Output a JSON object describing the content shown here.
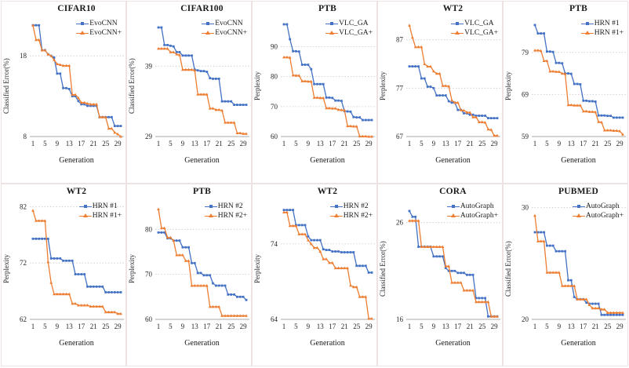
{
  "colors": {
    "series1": "#4472C4",
    "series2": "#ED7D31",
    "grid": "#c9c9c9",
    "axis": "#a8a8a8"
  },
  "xlabel": "Generation",
  "x_ticks": [
    1,
    5,
    9,
    13,
    17,
    21,
    25,
    29
  ],
  "n_generations": 30,
  "chart_data": [
    {
      "type": "line",
      "title": "CIFAR10",
      "ylabel": "Classified Error(%)",
      "y_ticks": [
        8,
        18
      ],
      "ylim": [
        8,
        22.4
      ],
      "grid": "dashed",
      "legend_position": "top-right",
      "series": [
        {
          "name": "EvoCNN",
          "marker": "square",
          "values": [
            21.8,
            21.8,
            21.8,
            18.7,
            18.7,
            18.2,
            18.0,
            17.8,
            15.8,
            15.8,
            14.0,
            14.0,
            13.9,
            13.0,
            13.0,
            12.4,
            12.0,
            12.0,
            11.8,
            11.8,
            11.8,
            11.8,
            10.4,
            10.4,
            10.4,
            10.4,
            10.4,
            9.3,
            9.3,
            9.3
          ]
        },
        {
          "name": "EvoCNN+",
          "marker": "triangle",
          "values": [
            21.8,
            20.0,
            20.0,
            18.7,
            18.7,
            18.2,
            18.0,
            17.5,
            17.0,
            16.9,
            16.8,
            16.8,
            16.8,
            13.2,
            13.2,
            12.8,
            12.2,
            12.2,
            12.1,
            12.0,
            12.0,
            12.0,
            10.4,
            10.4,
            10.4,
            9.0,
            9.0,
            8.5,
            8.3,
            8.0
          ]
        }
      ]
    },
    {
      "type": "line",
      "title": "CIFAR100",
      "ylabel": "Classified Error(%)",
      "y_ticks": [
        29,
        39
      ],
      "ylim": [
        29,
        45.5
      ],
      "grid": "dashed",
      "legend_position": "top-right",
      "series": [
        {
          "name": "EvoCNN",
          "marker": "square",
          "values": [
            44.5,
            44.5,
            42.0,
            42.0,
            41.9,
            41.8,
            41.0,
            41.0,
            40.5,
            40.5,
            40.5,
            40.5,
            38.5,
            38.4,
            38.3,
            38.3,
            38.2,
            37.3,
            37.2,
            37.2,
            37.2,
            34.0,
            34.0,
            34.0,
            34.0,
            33.5,
            33.5,
            33.5,
            33.5,
            33.5
          ]
        },
        {
          "name": "EvoCNN+",
          "marker": "triangle",
          "values": [
            41.5,
            41.5,
            41.5,
            41.5,
            41.0,
            41.0,
            40.7,
            40.6,
            38.5,
            38.5,
            38.5,
            38.5,
            38.4,
            35.0,
            35.0,
            35.0,
            35.0,
            33.0,
            33.0,
            32.8,
            32.8,
            32.7,
            31.0,
            31.0,
            31.0,
            31.0,
            29.5,
            29.5,
            29.4,
            29.4
          ]
        }
      ]
    },
    {
      "type": "line",
      "title": "PTB",
      "ylabel": "Perplexity",
      "y_ticks": [
        60,
        70,
        80,
        90
      ],
      "ylim": [
        60,
        98.8
      ],
      "grid": "dashed",
      "legend_position": "top-right",
      "series": [
        {
          "name": "VLC_GA",
          "marker": "square",
          "values": [
            97.5,
            97.5,
            92.5,
            88.5,
            88.5,
            88.4,
            84.0,
            84.0,
            84.0,
            82.5,
            77.5,
            77.5,
            77.5,
            77.5,
            73.0,
            73.0,
            72.9,
            72.0,
            72.0,
            71.9,
            68.5,
            68.4,
            68.3,
            66.5,
            66.4,
            66.4,
            65.5,
            65.5,
            65.5,
            65.5
          ]
        },
        {
          "name": "VLC_GA+",
          "marker": "triangle",
          "values": [
            86.5,
            86.5,
            86.4,
            80.5,
            80.4,
            80.4,
            78.5,
            78.5,
            78.4,
            78.4,
            73.0,
            73.0,
            72.9,
            72.9,
            69.5,
            69.5,
            69.4,
            69.4,
            69.0,
            68.9,
            68.8,
            63.5,
            63.5,
            63.4,
            63.4,
            60.1,
            60.1,
            60.1,
            60.0,
            60.0
          ]
        }
      ]
    },
    {
      "type": "line",
      "title": "WT2",
      "ylabel": "Perplexity",
      "y_ticks": [
        67,
        77,
        87
      ],
      "ylim": [
        67,
        91.0
      ],
      "grid": "dashed",
      "legend_position": "top-right",
      "series": [
        {
          "name": "VLC_GA",
          "marker": "square",
          "values": [
            81.5,
            81.5,
            81.5,
            81.5,
            79.0,
            79.0,
            77.3,
            77.3,
            77.0,
            75.5,
            75.5,
            75.5,
            75.5,
            74.3,
            74.0,
            74.0,
            72.5,
            72.5,
            71.8,
            71.8,
            71.5,
            71.5,
            71.3,
            71.3,
            71.3,
            71.3,
            70.8,
            70.8,
            70.8,
            70.8
          ]
        },
        {
          "name": "VLC_GA+",
          "marker": "triangle",
          "values": [
            90.0,
            87.5,
            85.5,
            85.5,
            85.5,
            82.0,
            81.5,
            81.5,
            80.5,
            80.0,
            80.0,
            77.5,
            77.5,
            77.4,
            74.5,
            74.0,
            74.0,
            72.5,
            72.4,
            72.0,
            72.0,
            71.0,
            71.0,
            70.0,
            70.0,
            69.9,
            68.5,
            68.4,
            67.2,
            67.2
          ]
        }
      ]
    },
    {
      "type": "line",
      "title": "PTB",
      "ylabel": "Perplexity",
      "y_ticks": [
        59,
        69,
        79
      ],
      "ylim": [
        59,
        86.6
      ],
      "grid": "dashed",
      "legend_position": "top-right",
      "series": [
        {
          "name": "HRN #1",
          "marker": "square",
          "values": [
            85.5,
            83.5,
            83.5,
            83.5,
            79.2,
            79.2,
            79.1,
            76.5,
            76.5,
            76.4,
            74.0,
            74.0,
            73.9,
            71.5,
            71.5,
            71.4,
            67.5,
            67.5,
            67.4,
            67.4,
            67.3,
            64.0,
            64.0,
            64.0,
            63.9,
            63.9,
            63.5,
            63.5,
            63.5,
            63.5
          ]
        },
        {
          "name": "HRN #1+",
          "marker": "triangle",
          "values": [
            79.5,
            79.5,
            79.4,
            77.0,
            77.0,
            74.5,
            74.5,
            74.4,
            74.4,
            74.0,
            73.9,
            66.5,
            66.5,
            66.4,
            66.4,
            66.4,
            65.0,
            65.0,
            64.9,
            64.9,
            64.8,
            62.5,
            62.4,
            60.5,
            60.5,
            60.5,
            60.4,
            60.4,
            60.3,
            59.5
          ]
        }
      ]
    },
    {
      "type": "line",
      "title": "WT2",
      "ylabel": "Perplexity",
      "y_ticks": [
        62,
        72,
        82
      ],
      "ylim": [
        62,
        82.6
      ],
      "grid": "dashed",
      "legend_position": "top-right",
      "series": [
        {
          "name": "HRN #1",
          "marker": "square",
          "values": [
            76.3,
            76.3,
            76.3,
            76.3,
            76.3,
            76.3,
            72.8,
            72.8,
            72.8,
            72.8,
            72.4,
            72.4,
            72.4,
            72.4,
            70.0,
            70.0,
            70.0,
            70.0,
            67.8,
            67.8,
            67.8,
            67.8,
            67.8,
            67.8,
            66.8,
            66.8,
            66.8,
            66.8,
            66.8,
            66.8
          ]
        },
        {
          "name": "HRN #1+",
          "marker": "triangle",
          "values": [
            81.3,
            79.5,
            79.5,
            79.5,
            79.5,
            72.2,
            68.5,
            66.5,
            66.5,
            66.5,
            66.5,
            66.5,
            66.5,
            64.8,
            64.8,
            64.5,
            64.5,
            64.5,
            64.5,
            64.3,
            64.3,
            64.3,
            64.3,
            64.3,
            63.3,
            63.3,
            63.3,
            63.3,
            63.0,
            63.0
          ]
        }
      ]
    },
    {
      "type": "line",
      "title": "PTB",
      "ylabel": "Perplexity",
      "y_ticks": [
        60,
        70,
        80
      ],
      "ylim": [
        60,
        85.8
      ],
      "grid": "dashed",
      "legend_position": "top-right",
      "series": [
        {
          "name": "HRN #2",
          "marker": "square",
          "values": [
            79.3,
            79.3,
            79.3,
            78.0,
            78.0,
            77.5,
            77.5,
            77.5,
            76.0,
            76.0,
            76.0,
            72.5,
            72.5,
            70.3,
            70.3,
            69.8,
            69.8,
            69.8,
            68.0,
            67.5,
            67.5,
            67.5,
            67.5,
            65.5,
            65.5,
            65.5,
            65.0,
            65.0,
            65.0,
            64.3
          ]
        },
        {
          "name": "HRN #2+",
          "marker": "triangle",
          "values": [
            84.5,
            80.3,
            80.3,
            78.2,
            78.2,
            77.5,
            74.3,
            74.3,
            74.3,
            73.0,
            73.0,
            67.5,
            67.5,
            67.5,
            67.5,
            67.5,
            67.5,
            62.8,
            62.8,
            62.8,
            62.8,
            60.8,
            60.8,
            60.8,
            60.8,
            60.8,
            60.8,
            60.8,
            60.8,
            60.8
          ]
        }
      ]
    },
    {
      "type": "line",
      "title": "WT2",
      "ylabel": "Perplexity",
      "y_ticks": [
        64,
        74
      ],
      "ylim": [
        64,
        79.4
      ],
      "grid": "dashed",
      "legend_position": "top-right",
      "series": [
        {
          "name": "HRN #2",
          "marker": "square",
          "values": [
            78.5,
            78.5,
            78.5,
            78.5,
            76.5,
            76.5,
            76.5,
            76.5,
            75.0,
            74.5,
            74.5,
            74.5,
            74.5,
            73.3,
            73.2,
            73.2,
            73.0,
            73.0,
            73.0,
            72.9,
            72.9,
            72.9,
            72.9,
            72.9,
            71.1,
            71.1,
            71.1,
            71.1,
            70.2,
            70.2
          ]
        },
        {
          "name": "HRN #2+",
          "marker": "triangle",
          "values": [
            78.2,
            78.2,
            76.4,
            76.4,
            76.4,
            75.3,
            75.3,
            75.3,
            74.5,
            74.0,
            73.5,
            73.5,
            73.0,
            72.0,
            72.0,
            71.5,
            71.5,
            70.8,
            70.8,
            70.8,
            70.8,
            70.8,
            68.5,
            68.3,
            68.3,
            67.0,
            67.0,
            67.0,
            64.1,
            64.1
          ]
        }
      ]
    },
    {
      "type": "line",
      "title": "CORA",
      "ylabel": "Classified Error(%)",
      "y_ticks": [
        16,
        26
      ],
      "ylim": [
        16,
        28.0
      ],
      "grid": "dashed",
      "legend_position": "top-right",
      "series": [
        {
          "name": "AutoGraph",
          "marker": "square",
          "values": [
            27.2,
            26.6,
            26.6,
            23.5,
            23.5,
            23.5,
            23.5,
            23.5,
            22.5,
            22.5,
            22.5,
            22.5,
            21.3,
            21.0,
            21.0,
            21.0,
            20.8,
            20.8,
            20.8,
            20.6,
            20.6,
            20.6,
            18.2,
            18.2,
            18.2,
            18.2,
            16.3,
            16.3,
            16.3,
            16.3
          ]
        },
        {
          "name": "AutoGraph+",
          "marker": "triangle",
          "values": [
            26.2,
            26.2,
            26.2,
            26.2,
            23.5,
            23.5,
            23.5,
            23.5,
            23.5,
            23.5,
            23.5,
            23.5,
            21.5,
            21.5,
            19.8,
            19.8,
            19.8,
            19.8,
            19.0,
            19.0,
            19.0,
            19.0,
            17.8,
            17.8,
            17.8,
            17.8,
            17.8,
            16.3,
            16.3,
            16.3
          ]
        }
      ]
    },
    {
      "type": "line",
      "title": "PUBMED",
      "ylabel": "Classified Error(%)",
      "y_ticks": [
        20,
        30
      ],
      "ylim": [
        20,
        30.4
      ],
      "grid": "dashed",
      "legend_position": "top-right",
      "series": [
        {
          "name": "AutoGraph",
          "marker": "square",
          "values": [
            27.8,
            27.8,
            27.8,
            27.8,
            26.6,
            26.6,
            26.6,
            26.1,
            26.1,
            26.1,
            26.1,
            23.5,
            23.5,
            22.0,
            21.8,
            21.8,
            21.8,
            21.5,
            21.4,
            21.4,
            21.4,
            21.4,
            20.4,
            20.4,
            20.4,
            20.4,
            20.4,
            20.4,
            20.4,
            20.4
          ]
        },
        {
          "name": "AutoGraph+",
          "marker": "triangle",
          "values": [
            29.3,
            27.0,
            27.0,
            27.0,
            24.2,
            24.2,
            24.2,
            24.2,
            24.2,
            23.0,
            23.0,
            23.0,
            23.0,
            23.0,
            21.8,
            21.8,
            21.8,
            21.8,
            21.3,
            21.0,
            21.0,
            21.0,
            20.9,
            20.9,
            20.6,
            20.6,
            20.6,
            20.6,
            20.6,
            20.6
          ]
        }
      ]
    }
  ]
}
